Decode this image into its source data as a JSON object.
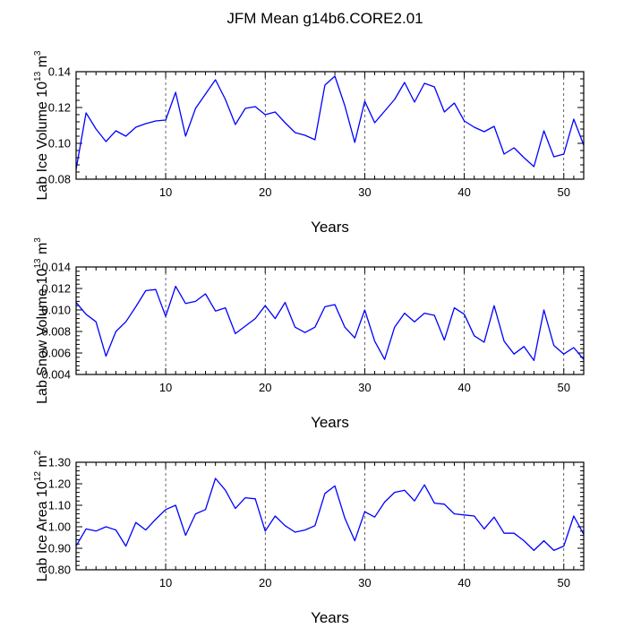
{
  "figure_title": "JFM Mean g14b6.CORE2.01",
  "chart_data": [
    {
      "type": "line",
      "title": "JFM Mean g14b6.CORE2.01",
      "xlabel": "Years",
      "ylabel_main": "Lab Ice Volume 10",
      "ylabel_exp": "13",
      "ylabel_unit": "m",
      "ylabel_unit_exp": "3",
      "xlim": [
        1,
        52
      ],
      "ylim": [
        0.08,
        0.14
      ],
      "xticks": [
        10,
        20,
        30,
        40,
        50
      ],
      "yticks": [
        0.08,
        0.1,
        0.12,
        0.14
      ],
      "ytick_labels": [
        "0.08",
        "0.10",
        "0.12",
        "0.14"
      ],
      "grid": "dashed vertical lines at x ticks",
      "line_color": "#0000ff",
      "series": [
        {
          "name": "Lab Ice Volume",
          "x": [
            1,
            2,
            3,
            4,
            5,
            6,
            7,
            8,
            9,
            10,
            11,
            12,
            13,
            14,
            15,
            16,
            17,
            18,
            19,
            20,
            21,
            22,
            23,
            24,
            25,
            26,
            27,
            28,
            29,
            30,
            31,
            32,
            33,
            34,
            35,
            36,
            37,
            38,
            39,
            40,
            41,
            42,
            43,
            44,
            45,
            46,
            47,
            48,
            49,
            50,
            51,
            52
          ],
          "values": [
            0.0855,
            0.117,
            0.108,
            0.101,
            0.107,
            0.104,
            0.109,
            0.111,
            0.1125,
            0.113,
            0.1285,
            0.104,
            0.1195,
            0.1275,
            0.1355,
            0.1245,
            0.1105,
            0.1195,
            0.1205,
            0.116,
            0.1175,
            0.1115,
            0.106,
            0.1045,
            0.102,
            0.1325,
            0.1375,
            0.121,
            0.1005,
            0.1235,
            0.1115,
            0.118,
            0.1245,
            0.134,
            0.123,
            0.1335,
            0.1315,
            0.1175,
            0.1225,
            0.1125,
            0.109,
            0.1065,
            0.1095,
            0.094,
            0.0975,
            0.092,
            0.087,
            0.107,
            0.0925,
            0.094,
            0.1135,
            0.099
          ]
        }
      ]
    },
    {
      "type": "line",
      "title": "",
      "xlabel": "Years",
      "ylabel_main": "Lab Snow Volume 10",
      "ylabel_exp": "13",
      "ylabel_unit": "m",
      "ylabel_unit_exp": "3",
      "xlim": [
        1,
        52
      ],
      "ylim": [
        0.004,
        0.014
      ],
      "xticks": [
        10,
        20,
        30,
        40,
        50
      ],
      "yticks": [
        0.004,
        0.006,
        0.008,
        0.01,
        0.012,
        0.014
      ],
      "ytick_labels": [
        "0.004",
        "0.006",
        "0.008",
        "0.010",
        "0.012",
        "0.014"
      ],
      "grid": "dashed vertical lines at x ticks",
      "line_color": "#0000ff",
      "series": [
        {
          "name": "Lab Snow Volume",
          "x": [
            1,
            2,
            3,
            4,
            5,
            6,
            7,
            8,
            9,
            10,
            11,
            12,
            13,
            14,
            15,
            16,
            17,
            18,
            19,
            20,
            21,
            22,
            23,
            24,
            25,
            26,
            27,
            28,
            29,
            30,
            31,
            32,
            33,
            34,
            35,
            36,
            37,
            38,
            39,
            40,
            41,
            42,
            43,
            44,
            45,
            46,
            47,
            48,
            49,
            50,
            51,
            52
          ],
          "values": [
            0.0107,
            0.0096,
            0.0089,
            0.0057,
            0.008,
            0.0089,
            0.0103,
            0.0118,
            0.0119,
            0.0094,
            0.0122,
            0.0106,
            0.0108,
            0.0115,
            0.0099,
            0.0102,
            0.0078,
            0.0085,
            0.0092,
            0.0104,
            0.0092,
            0.0107,
            0.0084,
            0.0079,
            0.0084,
            0.0103,
            0.0105,
            0.0084,
            0.0074,
            0.01,
            0.0071,
            0.0054,
            0.0084,
            0.0097,
            0.0089,
            0.0097,
            0.0095,
            0.0072,
            0.0102,
            0.0096,
            0.0076,
            0.007,
            0.0104,
            0.0071,
            0.0059,
            0.0066,
            0.0053,
            0.01,
            0.0067,
            0.0059,
            0.0065,
            0.0054
          ]
        }
      ]
    },
    {
      "type": "line",
      "title": "",
      "xlabel": "Years",
      "ylabel_main": "Lab Ice Area 10",
      "ylabel_exp": "12",
      "ylabel_unit": "m",
      "ylabel_unit_exp": "2",
      "xlim": [
        1,
        52
      ],
      "ylim": [
        0.8,
        1.3
      ],
      "xticks": [
        10,
        20,
        30,
        40,
        50
      ],
      "yticks": [
        0.8,
        0.9,
        1.0,
        1.1,
        1.2,
        1.3
      ],
      "ytick_labels": [
        "0.80",
        "0.90",
        "1.00",
        "1.10",
        "1.20",
        "1.30"
      ],
      "grid": "dashed vertical lines at x ticks",
      "line_color": "#0000ff",
      "series": [
        {
          "name": "Lab Ice Area",
          "x": [
            1,
            2,
            3,
            4,
            5,
            6,
            7,
            8,
            9,
            10,
            11,
            12,
            13,
            14,
            15,
            16,
            17,
            18,
            19,
            20,
            21,
            22,
            23,
            24,
            25,
            26,
            27,
            28,
            29,
            30,
            31,
            32,
            33,
            34,
            35,
            36,
            37,
            38,
            39,
            40,
            41,
            42,
            43,
            44,
            45,
            46,
            47,
            48,
            49,
            50,
            51,
            52
          ],
          "values": [
            0.91,
            0.99,
            0.98,
            1.0,
            0.985,
            0.91,
            1.02,
            0.985,
            1.035,
            1.08,
            1.1,
            0.96,
            1.06,
            1.08,
            1.225,
            1.17,
            1.085,
            1.135,
            1.13,
            0.98,
            1.05,
            1.005,
            0.975,
            0.985,
            1.005,
            1.155,
            1.19,
            1.04,
            0.935,
            1.07,
            1.045,
            1.115,
            1.16,
            1.17,
            1.12,
            1.195,
            1.11,
            1.105,
            1.06,
            1.055,
            1.05,
            0.99,
            1.045,
            0.97,
            0.97,
            0.935,
            0.89,
            0.935,
            0.89,
            0.91,
            1.05,
            0.965
          ]
        }
      ]
    }
  ]
}
